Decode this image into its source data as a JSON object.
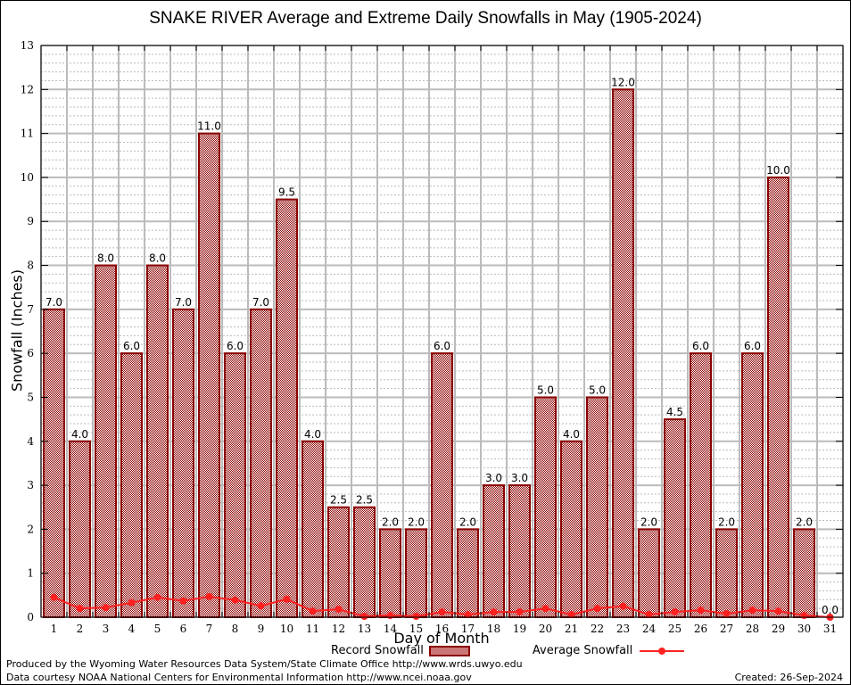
{
  "chart_data": {
    "type": "bar",
    "title": "SNAKE RIVER Average and Extreme Daily Snowfalls in May (1905-2024)",
    "xlabel": "Day of Month",
    "ylabel": "Snowfall (Inches)",
    "ylim": [
      0,
      13
    ],
    "yticks": [
      "0",
      "1",
      "2",
      "3",
      "4",
      "5",
      "6",
      "7",
      "8",
      "9",
      "10",
      "11",
      "12",
      "13"
    ],
    "grid": true,
    "categories": [
      "1",
      "2",
      "3",
      "4",
      "5",
      "6",
      "7",
      "8",
      "9",
      "10",
      "11",
      "12",
      "13",
      "14",
      "15",
      "16",
      "17",
      "18",
      "19",
      "20",
      "21",
      "22",
      "23",
      "24",
      "25",
      "26",
      "27",
      "28",
      "29",
      "30",
      "31"
    ],
    "series": [
      {
        "name": "Record Snowfall",
        "type": "bar",
        "color": "#8b0000",
        "values": [
          7.0,
          4.0,
          8.0,
          6.0,
          8.0,
          7.0,
          11.0,
          6.0,
          7.0,
          9.5,
          4.0,
          2.5,
          2.5,
          2.0,
          2.0,
          6.0,
          2.0,
          3.0,
          3.0,
          5.0,
          4.0,
          5.0,
          12.0,
          2.0,
          4.5,
          6.0,
          2.0,
          6.0,
          10.0,
          2.0,
          0.0
        ],
        "labels": [
          "7.0",
          "4.0",
          "8.0",
          "6.0",
          "8.0",
          "7.0",
          "11.0",
          "6.0",
          "7.0",
          "9.5",
          "4.0",
          "2.5",
          "2.5",
          "2.0",
          "2.0",
          "6.0",
          "2.0",
          "3.0",
          "3.0",
          "5.0",
          "4.0",
          "5.0",
          "12.0",
          "2.0",
          "4.5",
          "6.0",
          "2.0",
          "6.0",
          "10.0",
          "2.0",
          "0.0"
        ]
      },
      {
        "name": "Average Snowfall",
        "type": "line",
        "color": "#ff2020",
        "values": [
          0.45,
          0.2,
          0.22,
          0.33,
          0.45,
          0.37,
          0.47,
          0.39,
          0.26,
          0.41,
          0.14,
          0.18,
          0.02,
          0.04,
          0.02,
          0.12,
          0.06,
          0.12,
          0.12,
          0.2,
          0.06,
          0.2,
          0.25,
          0.06,
          0.12,
          0.16,
          0.08,
          0.16,
          0.14,
          0.04,
          0.0
        ]
      }
    ],
    "legend": "bottom-center"
  },
  "footer": {
    "line1": "Produced by the Wyoming Water Resources Data System/State Climate Office http://www.wrds.uwyo.edu",
    "line2": "Data courtesy NOAA National Centers for Environmental Information http://www.ncei.noaa.gov",
    "created": "Created: 26-Sep-2024"
  }
}
